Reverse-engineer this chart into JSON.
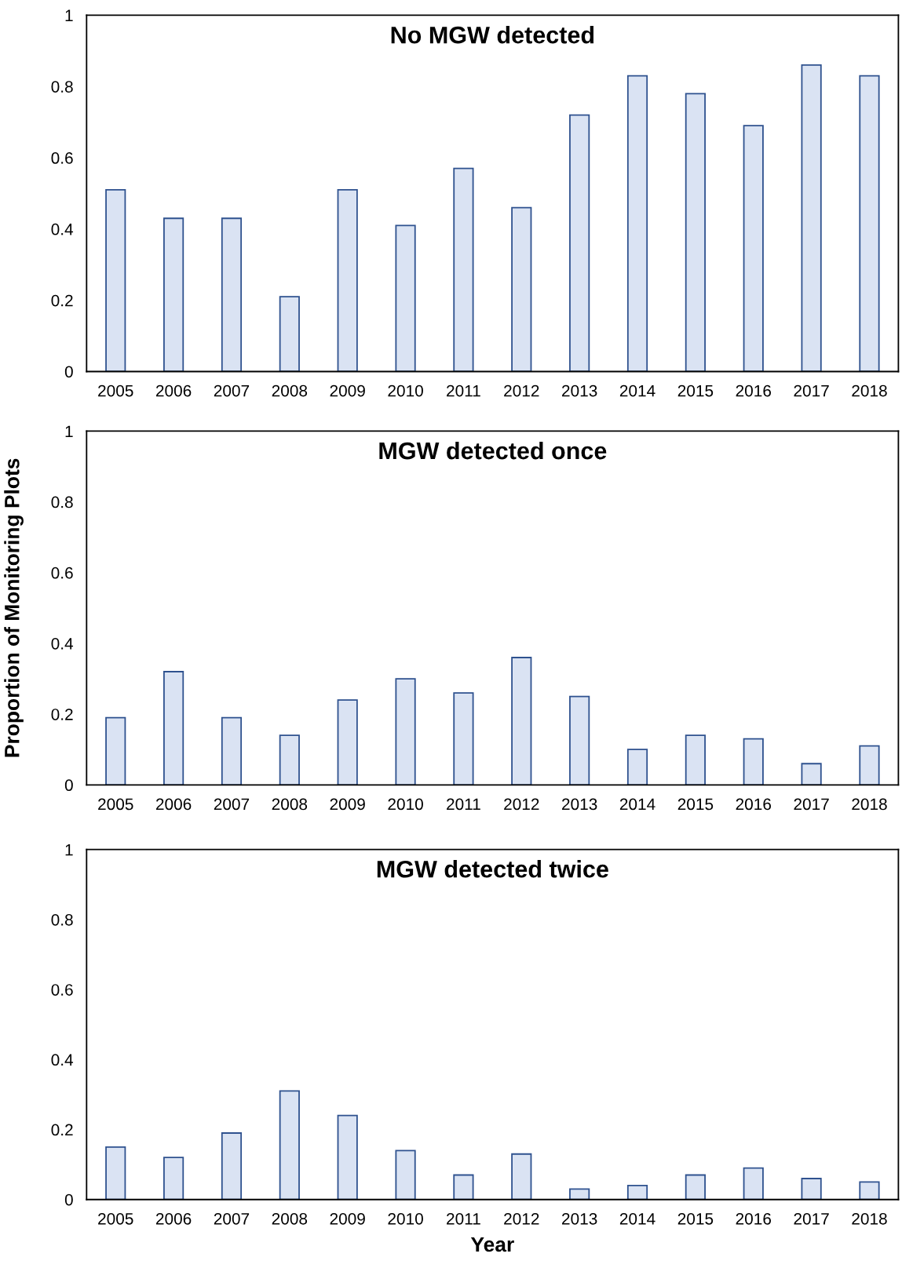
{
  "chart_data": [
    {
      "type": "bar",
      "title": "No MGW detected",
      "categories": [
        "2005",
        "2006",
        "2007",
        "2008",
        "2009",
        "2010",
        "2011",
        "2012",
        "2013",
        "2014",
        "2015",
        "2016",
        "2017",
        "2018"
      ],
      "color": "#dae3f3",
      "values": [
        0.51,
        0.43,
        0.43,
        0.21,
        0.51,
        0.41,
        0.57,
        0.46,
        0.72,
        0.83,
        0.78,
        0.69,
        0.86,
        0.83
      ],
      "ylim": [
        0,
        1
      ],
      "yticks": [
        0,
        0.2,
        0.4,
        0.6,
        0.8,
        1
      ],
      "grid": false
    },
    {
      "type": "bar",
      "title": "MGW detected once",
      "ylabel": "Proportion of Monitoring Plots",
      "categories": [
        "2005",
        "2006",
        "2007",
        "2008",
        "2009",
        "2010",
        "2011",
        "2012",
        "2013",
        "2014",
        "2015",
        "2016",
        "2017",
        "2018"
      ],
      "color": "#dae3f3",
      "values": [
        0.19,
        0.32,
        0.19,
        0.14,
        0.24,
        0.3,
        0.26,
        0.36,
        0.25,
        0.1,
        0.14,
        0.13,
        0.06,
        0.11
      ],
      "ylim": [
        0,
        1
      ],
      "yticks": [
        0,
        0.2,
        0.4,
        0.6,
        0.8,
        1
      ],
      "grid": false
    },
    {
      "type": "bar",
      "title": "MGW detected twice",
      "xlabel": "Year",
      "categories": [
        "2005",
        "2006",
        "2007",
        "2008",
        "2009",
        "2010",
        "2011",
        "2012",
        "2013",
        "2014",
        "2015",
        "2016",
        "2017",
        "2018"
      ],
      "color": "#dae3f3",
      "values": [
        0.15,
        0.12,
        0.19,
        0.31,
        0.24,
        0.14,
        0.07,
        0.13,
        0.03,
        0.04,
        0.07,
        0.09,
        0.06,
        0.05
      ],
      "ylim": [
        0,
        1
      ],
      "yticks": [
        0,
        0.2,
        0.4,
        0.6,
        0.8,
        1
      ],
      "grid": false
    }
  ]
}
